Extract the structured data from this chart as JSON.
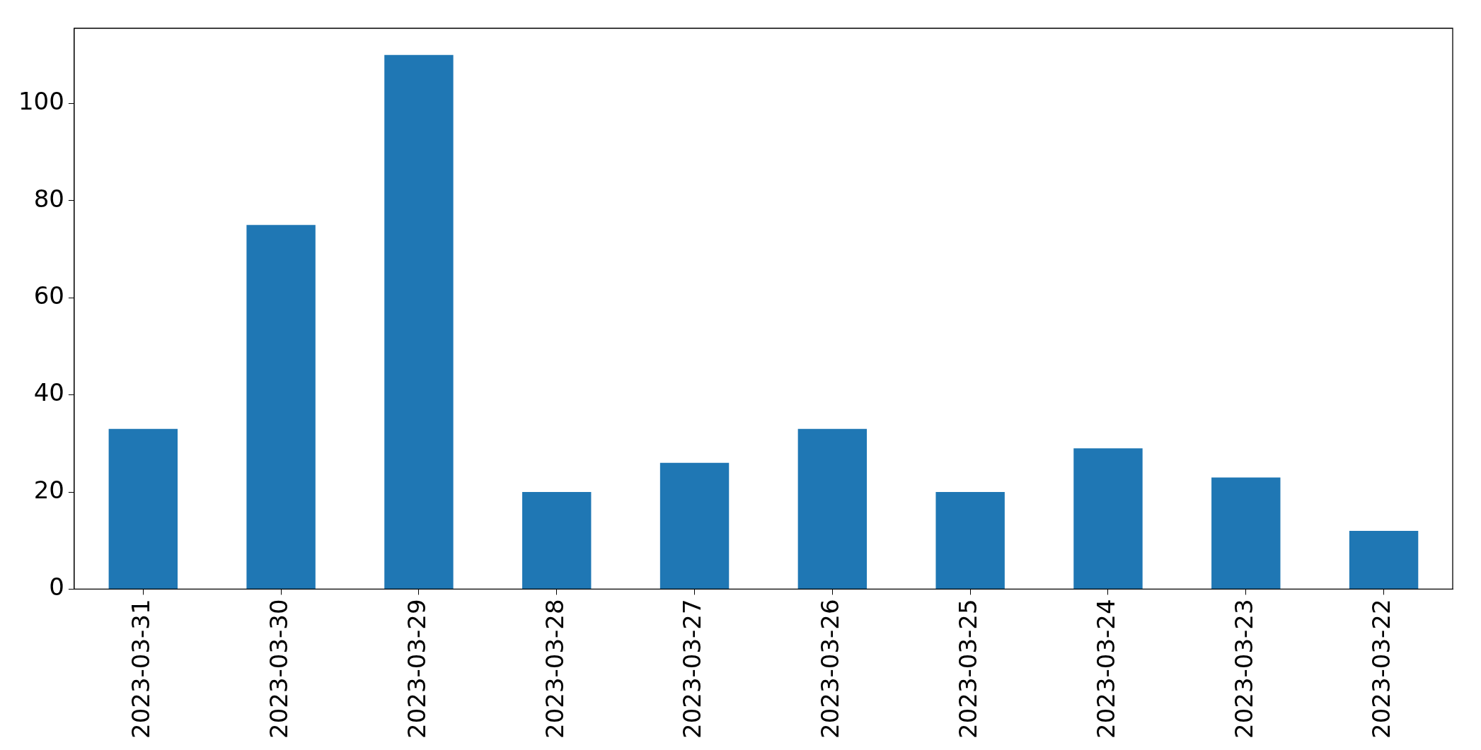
{
  "chart_data": {
    "type": "bar",
    "categories": [
      "2023-03-31",
      "2023-03-30",
      "2023-03-29",
      "2023-03-28",
      "2023-03-27",
      "2023-03-26",
      "2023-03-25",
      "2023-03-24",
      "2023-03-23",
      "2023-03-22"
    ],
    "values": [
      33,
      75,
      110,
      20,
      26,
      33,
      20,
      29,
      23,
      12
    ],
    "color": "#1f77b4",
    "ylim": [
      0,
      115.5
    ],
    "yticks": [
      0,
      20,
      40,
      60,
      80,
      100
    ],
    "grid": false,
    "legend": false
  }
}
